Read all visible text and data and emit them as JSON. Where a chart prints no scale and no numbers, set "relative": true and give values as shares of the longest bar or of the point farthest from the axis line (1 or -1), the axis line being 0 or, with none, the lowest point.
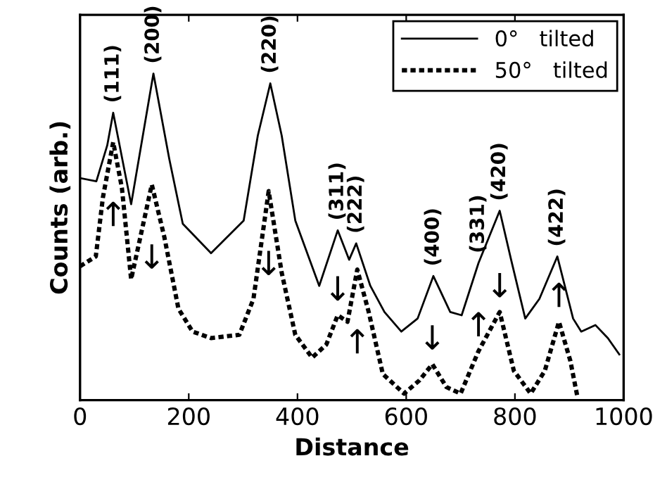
{
  "chart_data": {
    "type": "line",
    "relative": true,
    "xlabel": "Distance",
    "ylabel": "Counts (arb.)",
    "xlim": [
      0,
      1000
    ],
    "xticks": [
      0,
      200,
      400,
      600,
      800,
      1000
    ],
    "tick_labels": "x",
    "legend": "top right",
    "grid": false,
    "marker": "none",
    "series": [
      {
        "name": "0°   tilted",
        "color": "#000000",
        "line_style": "solid",
        "x": [
          0,
          30,
          50,
          61,
          94,
          135,
          164,
          189,
          241,
          301,
          327,
          350,
          371,
          396,
          440,
          474,
          495,
          508,
          534,
          560,
          591,
          621,
          650,
          681,
          702,
          733,
          772,
          793,
          819,
          845,
          878,
          907,
          922,
          948,
          971,
          992
        ],
        "values": [
          0.68,
          0.67,
          0.78,
          0.88,
          0.6,
          1.0,
          0.74,
          0.54,
          0.45,
          0.55,
          0.81,
          0.97,
          0.81,
          0.55,
          0.35,
          0.52,
          0.43,
          0.48,
          0.35,
          0.27,
          0.21,
          0.25,
          0.38,
          0.27,
          0.26,
          0.42,
          0.58,
          0.43,
          0.25,
          0.31,
          0.44,
          0.25,
          0.21,
          0.23,
          0.19,
          0.14
        ]
      },
      {
        "name": "50°   tilted",
        "color": "#000000",
        "line_style": "dotted",
        "x": [
          0,
          29,
          42,
          61,
          77,
          94,
          132,
          155,
          181,
          207,
          241,
          293,
          319,
          347,
          371,
          396,
          427,
          453,
          474,
          492,
          510,
          531,
          557,
          596,
          624,
          648,
          674,
          700,
          733,
          772,
          798,
          829,
          855,
          881,
          902,
          915
        ],
        "values": [
          0.41,
          0.44,
          0.62,
          0.79,
          0.65,
          0.37,
          0.66,
          0.5,
          0.28,
          0.21,
          0.19,
          0.2,
          0.31,
          0.64,
          0.39,
          0.2,
          0.13,
          0.17,
          0.26,
          0.24,
          0.4,
          0.27,
          0.08,
          0.02,
          0.06,
          0.11,
          0.04,
          0.02,
          0.15,
          0.27,
          0.09,
          0.02,
          0.09,
          0.24,
          0.12,
          0.01
        ]
      }
    ],
    "annotations": [
      {
        "text": "(111)",
        "x": 61,
        "y": 0.88
      },
      {
        "text": "(200)",
        "x": 135,
        "y": 1.0
      },
      {
        "text": "(220)",
        "x": 350,
        "y": 0.97
      },
      {
        "text": "(311)",
        "x": 474,
        "y": 0.52
      },
      {
        "text": "(222)",
        "x": 508,
        "y": 0.48
      },
      {
        "text": "(400)",
        "x": 650,
        "y": 0.38
      },
      {
        "text": "(331)",
        "x": 733,
        "y": 0.42
      },
      {
        "text": "(420)",
        "x": 772,
        "y": 0.58
      },
      {
        "text": "(422)",
        "x": 878,
        "y": 0.44
      },
      {
        "text": "↑",
        "x": 61,
        "y": 0.79
      },
      {
        "text": "↓",
        "x": 132,
        "y": 0.66
      },
      {
        "text": "↓",
        "x": 347,
        "y": 0.64
      },
      {
        "text": "↓",
        "x": 474,
        "y": 0.26
      },
      {
        "text": "↑",
        "x": 510,
        "y": 0.4
      },
      {
        "text": "↓",
        "x": 648,
        "y": 0.11
      },
      {
        "text": "↑",
        "x": 733,
        "y": 0.15
      },
      {
        "text": "↓",
        "x": 772,
        "y": 0.27
      },
      {
        "text": "↑",
        "x": 881,
        "y": 0.24
      }
    ]
  }
}
